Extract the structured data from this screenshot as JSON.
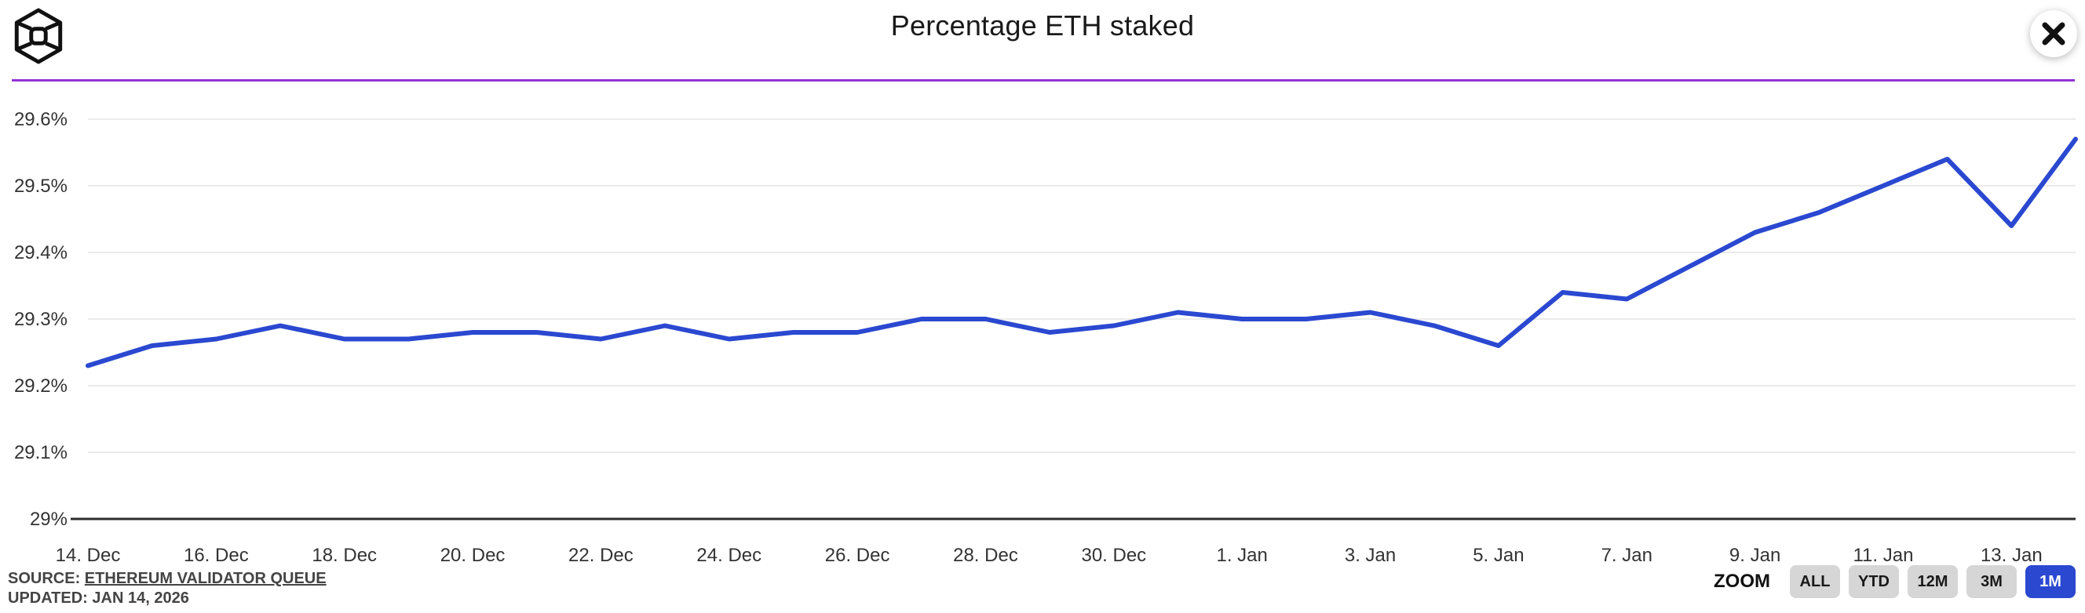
{
  "header": {
    "title": "Percentage ETH staked"
  },
  "icons": {
    "logo": "cube-wireframe-logo",
    "close": "close-x"
  },
  "colors": {
    "line_blue": "#2a48d0",
    "divider_purple": "#9333d4",
    "gridline": "#ebebeb",
    "axis_line": "#2d2d2d",
    "axis_text": "#333333",
    "button_gray": "#d6d6d6",
    "button_active_blue": "#2a48d0",
    "button_active_text": "#ffffff"
  },
  "footer": {
    "source_prefix": "SOURCE: ",
    "source_link": "ETHEREUM VALIDATOR QUEUE",
    "updated": "UPDATED: JAN 14, 2026"
  },
  "zoom_bar": {
    "label": "ZOOM",
    "buttons": [
      {
        "id": "all",
        "label": "ALL",
        "active": false
      },
      {
        "id": "ytd",
        "label": "YTD",
        "active": false
      },
      {
        "id": "12m",
        "label": "12M",
        "active": false
      },
      {
        "id": "3m",
        "label": "3M",
        "active": false
      },
      {
        "id": "1m",
        "label": "1M",
        "active": true
      }
    ]
  },
  "chart_data": {
    "type": "line",
    "title": "Percentage ETH staked",
    "xlabel": "",
    "ylabel": "",
    "grid": "horizontal-only",
    "legend_position": "none",
    "ylim": [
      29.0,
      29.65
    ],
    "x": [
      "14 Dec",
      "15 Dec",
      "16 Dec",
      "17 Dec",
      "18 Dec",
      "19 Dec",
      "20 Dec",
      "21 Dec",
      "22 Dec",
      "23 Dec",
      "24 Dec",
      "25 Dec",
      "26 Dec",
      "27 Dec",
      "28 Dec",
      "29 Dec",
      "30 Dec",
      "31 Dec",
      "1 Jan",
      "2 Jan",
      "3 Jan",
      "4 Jan",
      "5 Jan",
      "6 Jan",
      "7 Jan",
      "8 Jan",
      "9 Jan",
      "10 Jan",
      "11 Jan",
      "12 Jan",
      "13 Jan",
      "14 Jan"
    ],
    "values": [
      29.23,
      29.26,
      29.27,
      29.29,
      29.27,
      29.27,
      29.28,
      29.28,
      29.27,
      29.29,
      29.27,
      29.28,
      29.28,
      29.3,
      29.3,
      29.28,
      29.29,
      29.31,
      29.3,
      29.3,
      29.31,
      29.29,
      29.26,
      29.34,
      29.33,
      29.38,
      29.43,
      29.46,
      29.5,
      29.54,
      29.44,
      29.57
    ],
    "y_ticks": [
      {
        "label": "29.6%",
        "value": 29.6
      },
      {
        "label": "29.5%",
        "value": 29.5
      },
      {
        "label": "29.4%",
        "value": 29.4
      },
      {
        "label": "29.3%",
        "value": 29.3
      },
      {
        "label": "29.2%",
        "value": 29.2
      },
      {
        "label": "29.1%",
        "value": 29.1
      },
      {
        "label": "29%",
        "value": 29.0
      }
    ],
    "x_ticks": [
      {
        "label": "14. Dec",
        "day_index": 0
      },
      {
        "label": "16. Dec",
        "day_index": 2
      },
      {
        "label": "18. Dec",
        "day_index": 4
      },
      {
        "label": "20. Dec",
        "day_index": 6
      },
      {
        "label": "22. Dec",
        "day_index": 8
      },
      {
        "label": "24. Dec",
        "day_index": 10
      },
      {
        "label": "26. Dec",
        "day_index": 12
      },
      {
        "label": "28. Dec",
        "day_index": 14
      },
      {
        "label": "30. Dec",
        "day_index": 16
      },
      {
        "label": "1. Jan",
        "day_index": 18
      },
      {
        "label": "3. Jan",
        "day_index": 20
      },
      {
        "label": "5. Jan",
        "day_index": 22
      },
      {
        "label": "7. Jan",
        "day_index": 24
      },
      {
        "label": "9. Jan",
        "day_index": 26
      },
      {
        "label": "11. Jan",
        "day_index": 28
      },
      {
        "label": "13. Jan",
        "day_index": 30
      }
    ]
  }
}
